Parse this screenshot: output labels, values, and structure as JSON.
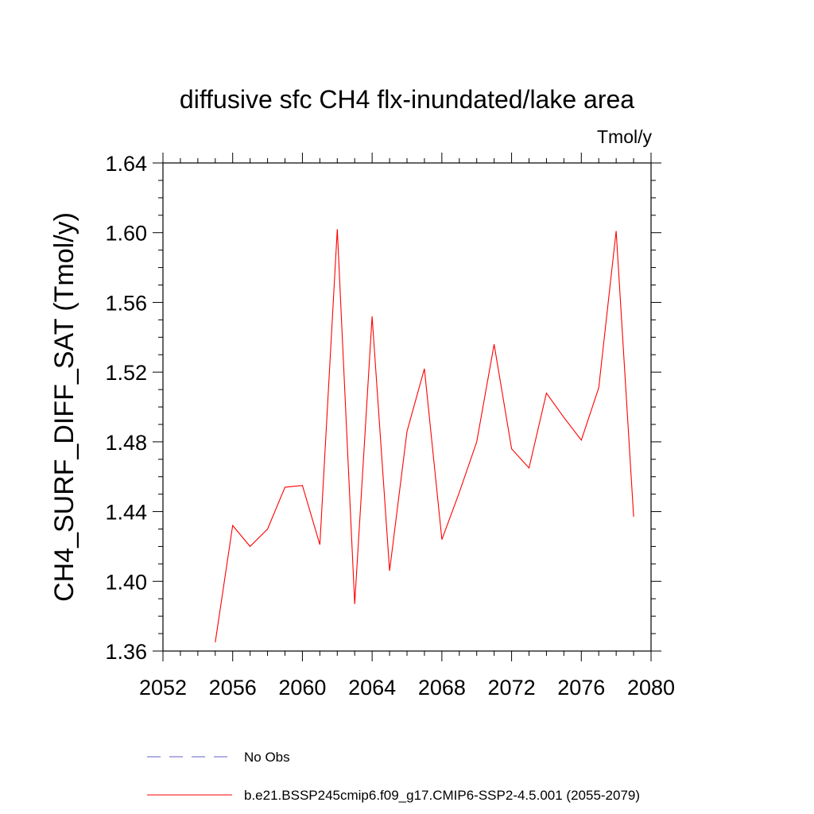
{
  "chart_data": {
    "type": "line",
    "title": "diffusive sfc CH4 flx-inundated/lake area",
    "units": "Tmol/y",
    "ylabel": "CH4_SURF_DIFF_SAT  (Tmol/y)",
    "xlabel": "",
    "xlim": [
      2052,
      2080
    ],
    "ylim": [
      1.36,
      1.64
    ],
    "x_ticks": [
      "2052",
      "2056",
      "2060",
      "2064",
      "2068",
      "2072",
      "2076",
      "2080"
    ],
    "y_ticks": [
      "1.36",
      "1.40",
      "1.44",
      "1.48",
      "1.52",
      "1.56",
      "1.60",
      "1.64"
    ],
    "series": [
      {
        "name": "b.e21.BSSP245cmip6.f09_g17.CMIP6-SSP2-4.5.001 (2055-2079)",
        "color": "#ff0000",
        "x": [
          2055,
          2056,
          2057,
          2058,
          2059,
          2060,
          2061,
          2062,
          2063,
          2064,
          2065,
          2066,
          2067,
          2068,
          2069,
          2070,
          2071,
          2072,
          2073,
          2074,
          2075,
          2076,
          2077,
          2078,
          2079
        ],
        "y": [
          1.365,
          1.432,
          1.42,
          1.43,
          1.454,
          1.455,
          1.421,
          1.602,
          1.387,
          1.552,
          1.406,
          1.486,
          1.522,
          1.424,
          1.451,
          1.48,
          1.536,
          1.476,
          1.465,
          1.508,
          1.494,
          1.481,
          1.511,
          1.601,
          1.437
        ]
      }
    ],
    "legend": [
      {
        "label": "No Obs",
        "color": "#6060c0",
        "style": "dashed"
      },
      {
        "label": "b.e21.BSSP245cmip6.f09_g17.CMIP6-SSP2-4.5.001 (2055-2079)",
        "color": "#ff0000",
        "style": "solid"
      }
    ],
    "legend_position": "bottom",
    "grid": false
  }
}
